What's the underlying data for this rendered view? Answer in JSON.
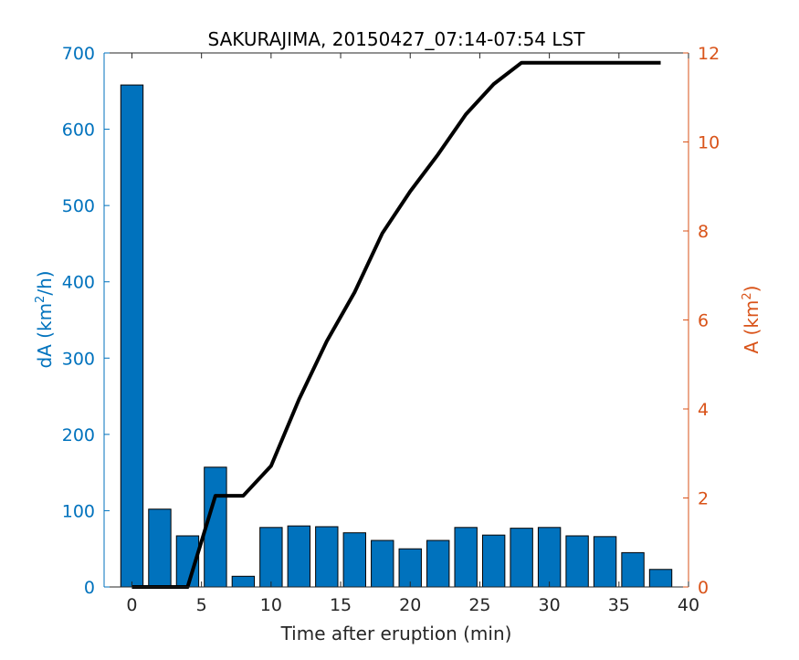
{
  "chart_data": {
    "type": "bar+line",
    "title": "SAKURAJIMA, 20150427_07:14-07:54 LST",
    "xlabel": "Time after eruption (min)",
    "ylabel_left": {
      "base": "dA (km",
      "sup": "2",
      "tail": "/h)"
    },
    "ylabel_right": {
      "base": "A (km",
      "sup": "2",
      "tail": ")"
    },
    "xlim": [
      -2,
      40
    ],
    "ylim_left": [
      0,
      700
    ],
    "ylim_right": [
      0,
      12
    ],
    "xticks": [
      0,
      5,
      10,
      15,
      20,
      25,
      30,
      35,
      40
    ],
    "yticks_left": [
      0,
      100,
      200,
      300,
      400,
      500,
      600,
      700
    ],
    "yticks_right": [
      0,
      2,
      4,
      6,
      8,
      10,
      12
    ],
    "bar_width": 1.6,
    "bars": {
      "x": [
        0,
        2,
        4,
        6,
        8,
        10,
        12,
        14,
        16,
        18,
        20,
        22,
        24,
        26,
        28,
        30,
        32,
        34,
        36,
        38
      ],
      "values": [
        658,
        102,
        67,
        157,
        14,
        78,
        80,
        79,
        71,
        61,
        50,
        61,
        78,
        68,
        77,
        78,
        67,
        66,
        45,
        23
      ]
    },
    "line": {
      "x": [
        0,
        2,
        4,
        6,
        8,
        10,
        12,
        14,
        16,
        18,
        20,
        22,
        24,
        26,
        28,
        30,
        32,
        34,
        36,
        38
      ],
      "values": [
        0,
        0,
        0,
        2.05,
        2.05,
        2.72,
        4.21,
        5.52,
        6.62,
        7.95,
        8.89,
        9.72,
        10.62,
        11.3,
        11.78,
        11.78,
        11.78,
        11.78,
        11.78,
        11.78
      ]
    },
    "colors": {
      "bar_fill": "#0072BD",
      "bar_edge": "#000000",
      "line": "#000000",
      "left_axis": "#0072BD",
      "right_axis": "#D95319",
      "x_axis": "#262626"
    }
  }
}
